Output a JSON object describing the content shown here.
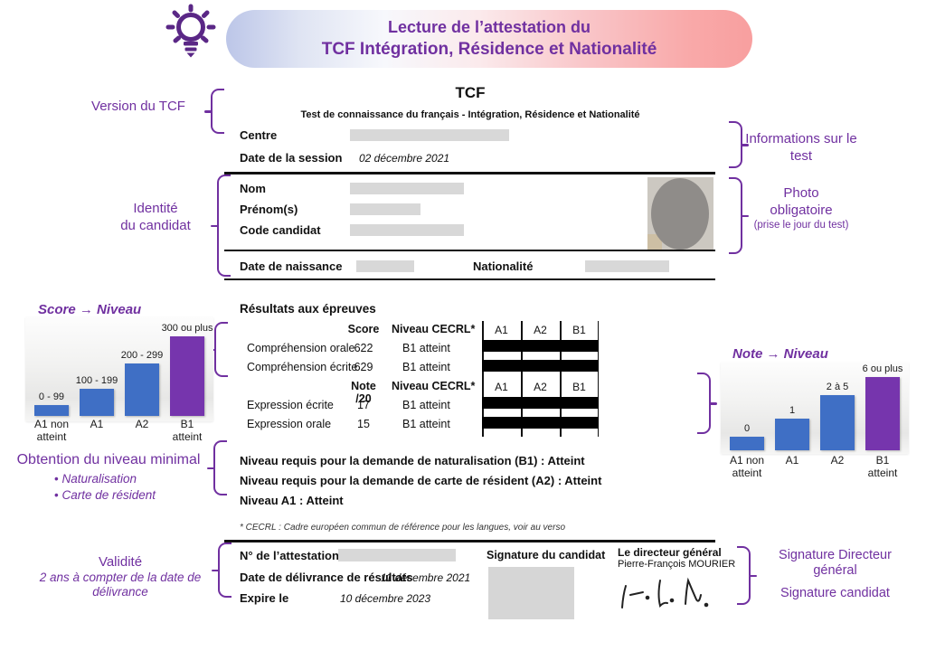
{
  "header": {
    "title_line1": "Lecture de l’attestation du",
    "title_line2": "TCF Intégration, Résidence et Nationalité"
  },
  "annotations": {
    "version_tcf": "Version du TCF",
    "identite_line1": "Identité",
    "identite_line2": "du candidat",
    "infos_test": "Informations sur le test",
    "photo_title": "Photo obligatoire",
    "photo_sub": "(prise le jour du test)",
    "obtention_title": "Obtention du niveau minimal",
    "obtention_bullets": [
      "Naturalisation",
      "Carte de résident"
    ],
    "validite_title": "Validité",
    "validite_sub": "2 ans à compter de la date de délivrance",
    "sig_directeur": "Signature Directeur général",
    "sig_candidat": "Signature candidat"
  },
  "document": {
    "title": "TCF",
    "subtitle": "Test de connaissance du français - Intégration, Résidence et Nationalité",
    "centre_label": "Centre",
    "session_label": "Date de la session",
    "session_value": "02 décembre 2021",
    "nom_label": "Nom",
    "prenom_label": "Prénom(s)",
    "code_label": "Code candidat",
    "naissance_label": "Date de naissance",
    "nationalite_label": "Nationalité",
    "resultats_title": "Résultats aux épreuves",
    "levels": [
      "A1",
      "A2",
      "B1"
    ],
    "epreuves": {
      "score_header": {
        "col1": "Score",
        "col2": "Niveau CECRL*"
      },
      "note_header": {
        "col1": "Note /20",
        "col2": "Niveau CECRL*"
      },
      "rows": [
        {
          "label": "Compréhension orale",
          "value": "622",
          "niveau": "B1 atteint"
        },
        {
          "label": "Compréhension écrite",
          "value": "629",
          "niveau": "B1 atteint"
        },
        {
          "label": "Expression écrite",
          "value": "17",
          "niveau": "B1 atteint"
        },
        {
          "label": "Expression orale",
          "value": "15",
          "niveau": "B1 atteint"
        }
      ]
    },
    "niveau_b1": "Niveau requis pour la demande de naturalisation (B1) : Atteint",
    "niveau_a2": "Niveau requis pour la demande de carte de résident (A2) : Atteint",
    "niveau_a1": "Niveau A1 : Atteint",
    "footnote": "* CECRL : Cadre européen commun de référence pour les langues, voir au verso",
    "attestation_label": "N° de l’attestation",
    "delivrance_label": "Date de délivrance de résultats",
    "delivrance_value": "11 décembre 2021",
    "expire_label": "Expire le",
    "expire_value": "10 décembre 2023",
    "sig_candidat_label": "Signature du candidat",
    "dg_label": "Le directeur général",
    "dg_name": "Pierre-François MOURIER"
  },
  "chart_data": [
    {
      "type": "bar",
      "title": "Score → Niveau",
      "categories": [
        "A1 non atteint",
        "A1",
        "A2",
        "B1 atteint"
      ],
      "bar_labels": [
        "0 - 99",
        "100 - 199",
        "200 - 299",
        "300 ou plus"
      ],
      "relative_heights": [
        12,
        30,
        58,
        88
      ],
      "colors": [
        "#3f6fc5",
        "#3f6fc5",
        "#3f6fc5",
        "#7635ad"
      ],
      "legend": "none",
      "grid": "off",
      "axis": "none"
    },
    {
      "type": "bar",
      "title": "Note → Niveau",
      "categories": [
        "A1 non atteint",
        "A1",
        "A2",
        "B1 atteint"
      ],
      "bar_labels": [
        "0",
        "1",
        "2 à 5",
        "6 ou plus"
      ],
      "relative_heights": [
        15,
        35,
        61,
        91
      ],
      "colors": [
        "#3f6fc5",
        "#3f6fc5",
        "#3f6fc5",
        "#7635ad"
      ],
      "legend": "none",
      "grid": "off",
      "axis": "none"
    }
  ],
  "colors": {
    "accent_purple": "#7030a0",
    "bar_blue": "#3f6fc5",
    "bar_purple": "#7635ad",
    "pill_left": "#bcc6e8",
    "pill_right": "#f89f9f",
    "redaction_gray": "#d8d8d8"
  }
}
